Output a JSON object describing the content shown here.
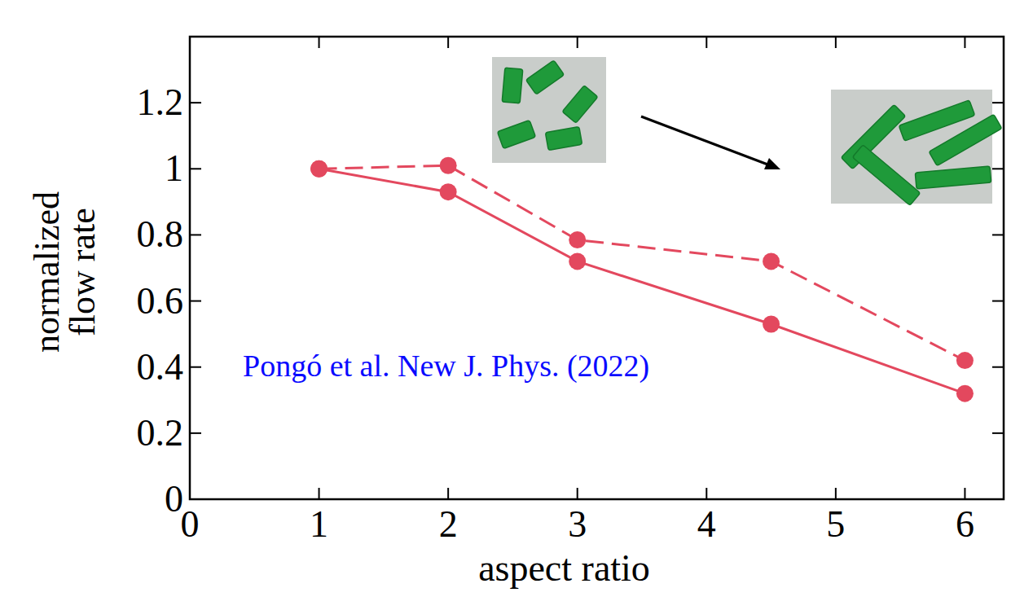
{
  "chart_data": {
    "type": "line",
    "xlabel": "aspect ratio",
    "ylabel": "normalized flow rate",
    "annotations": [
      "Pongó et al. New J. Phys. (2022)"
    ],
    "x": [
      1,
      2,
      3,
      4.5,
      6
    ],
    "series": [
      {
        "color": "#e3485e",
        "line_style": "solid",
        "marker": "circle",
        "values": [
          1,
          0.93,
          0.72,
          0.53,
          0.32
        ]
      },
      {
        "color": "#e3485e",
        "line_style": "dashed",
        "marker": "circle",
        "values": [
          1,
          1.01,
          0.785,
          0.72,
          0.42
        ]
      }
    ],
    "xlim": [
      0,
      6.3
    ],
    "ylim": [
      0,
      1.4
    ],
    "xticks": [
      0,
      1,
      2,
      3,
      4,
      5,
      6
    ],
    "yticks": [
      0,
      0.2,
      0.4,
      0.6,
      0.8,
      1,
      1.2
    ],
    "grid": false
  }
}
